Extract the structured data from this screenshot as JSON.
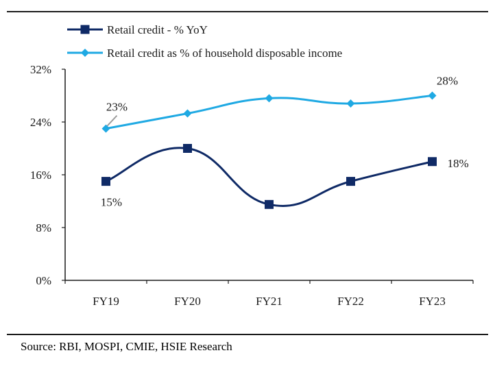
{
  "source": "Source: RBI, MOSPI, CMIE, HSIE Research",
  "chart_data": {
    "type": "line",
    "categories": [
      "FY19",
      "FY20",
      "FY21",
      "FY22",
      "FY23"
    ],
    "yticks": [
      "0%",
      "8%",
      "16%",
      "24%",
      "32%"
    ],
    "ylim": [
      0,
      32
    ],
    "grid": false,
    "legend_position": "top-left",
    "series": [
      {
        "name": "Retail credit - % YoY",
        "values": [
          15.0,
          20.0,
          11.5,
          15.0,
          18.0
        ],
        "color": "#0f2a66",
        "marker": "square",
        "labels": [
          "15%",
          "",
          "",
          "",
          "18%"
        ]
      },
      {
        "name": "Retail credit as % of household disposable income",
        "values": [
          23.0,
          25.3,
          27.6,
          26.8,
          28.0
        ],
        "color": "#1fa9e3",
        "marker": "diamond",
        "labels": [
          "23%",
          "",
          "",
          "",
          "28%"
        ]
      }
    ]
  }
}
